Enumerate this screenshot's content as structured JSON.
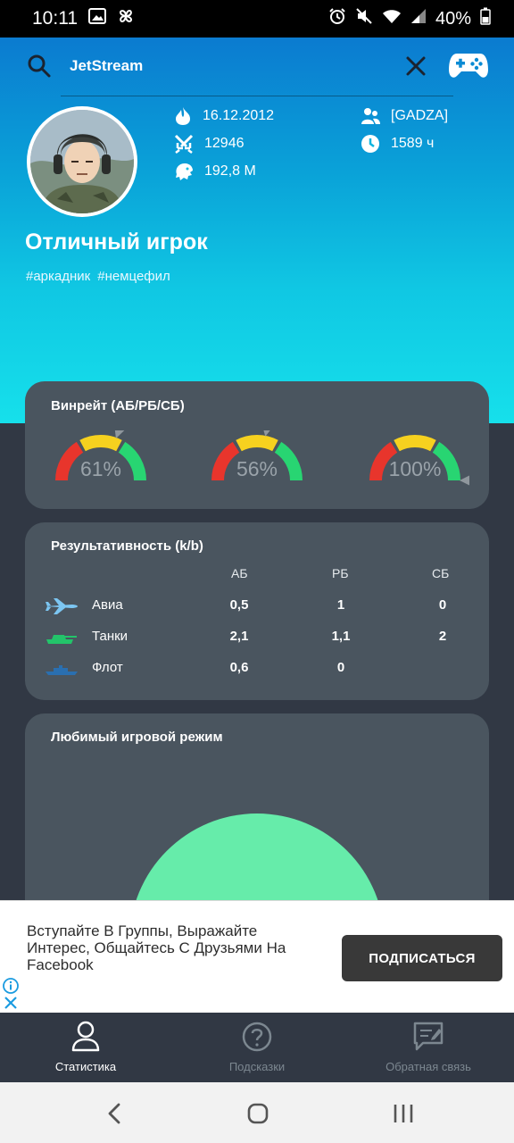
{
  "status_bar": {
    "time": "10:11",
    "battery": "40%"
  },
  "search": {
    "query": "JetStream"
  },
  "profile": {
    "reg_date": "16.12.2012",
    "squadron": "[GADZA]",
    "kills": "12946",
    "hours": "1589 ч",
    "lions": "192,8 М",
    "title": "Отличный игрок",
    "tags": [
      "#аркадник",
      "#немцефил"
    ]
  },
  "winrate": {
    "title": "Винрейт (АБ/РБ/СБ)",
    "gauges": [
      {
        "label": "61%",
        "value": 61
      },
      {
        "label": "56%",
        "value": 56
      },
      {
        "label": "100%",
        "value": 100
      }
    ]
  },
  "performance": {
    "title": "Результативность (k/b)",
    "columns": [
      "АБ",
      "РБ",
      "СБ"
    ],
    "rows": [
      {
        "name": "Авиа",
        "icon": "plane-icon",
        "values": [
          "0,5",
          "1",
          "0"
        ]
      },
      {
        "name": "Танки",
        "icon": "tank-icon",
        "values": [
          "2,1",
          "1,1",
          "2"
        ]
      },
      {
        "name": "Флот",
        "icon": "ship-icon",
        "values": [
          "0,6",
          "0",
          ""
        ]
      }
    ]
  },
  "favorite_mode": {
    "title": "Любимый игровой режим",
    "color": "#66ecaa"
  },
  "ad": {
    "text": "Вступайте В Группы, Выражайте Интерес, Общайтесь С Друзьями На Facebook",
    "button": "ПОДПИСАТЬСЯ"
  },
  "bottom_nav": [
    {
      "label": "Статистика",
      "icon": "person-icon",
      "active": true
    },
    {
      "label": "Подсказки",
      "icon": "help-icon",
      "active": false
    },
    {
      "label": "Обратная связь",
      "icon": "feedback-icon",
      "active": false
    }
  ],
  "colors": {
    "gauge_red": "#e8352c",
    "gauge_yellow": "#f6d11f",
    "gauge_green": "#28d572",
    "card_bg": "#4a555f",
    "page_bg": "#313844"
  }
}
